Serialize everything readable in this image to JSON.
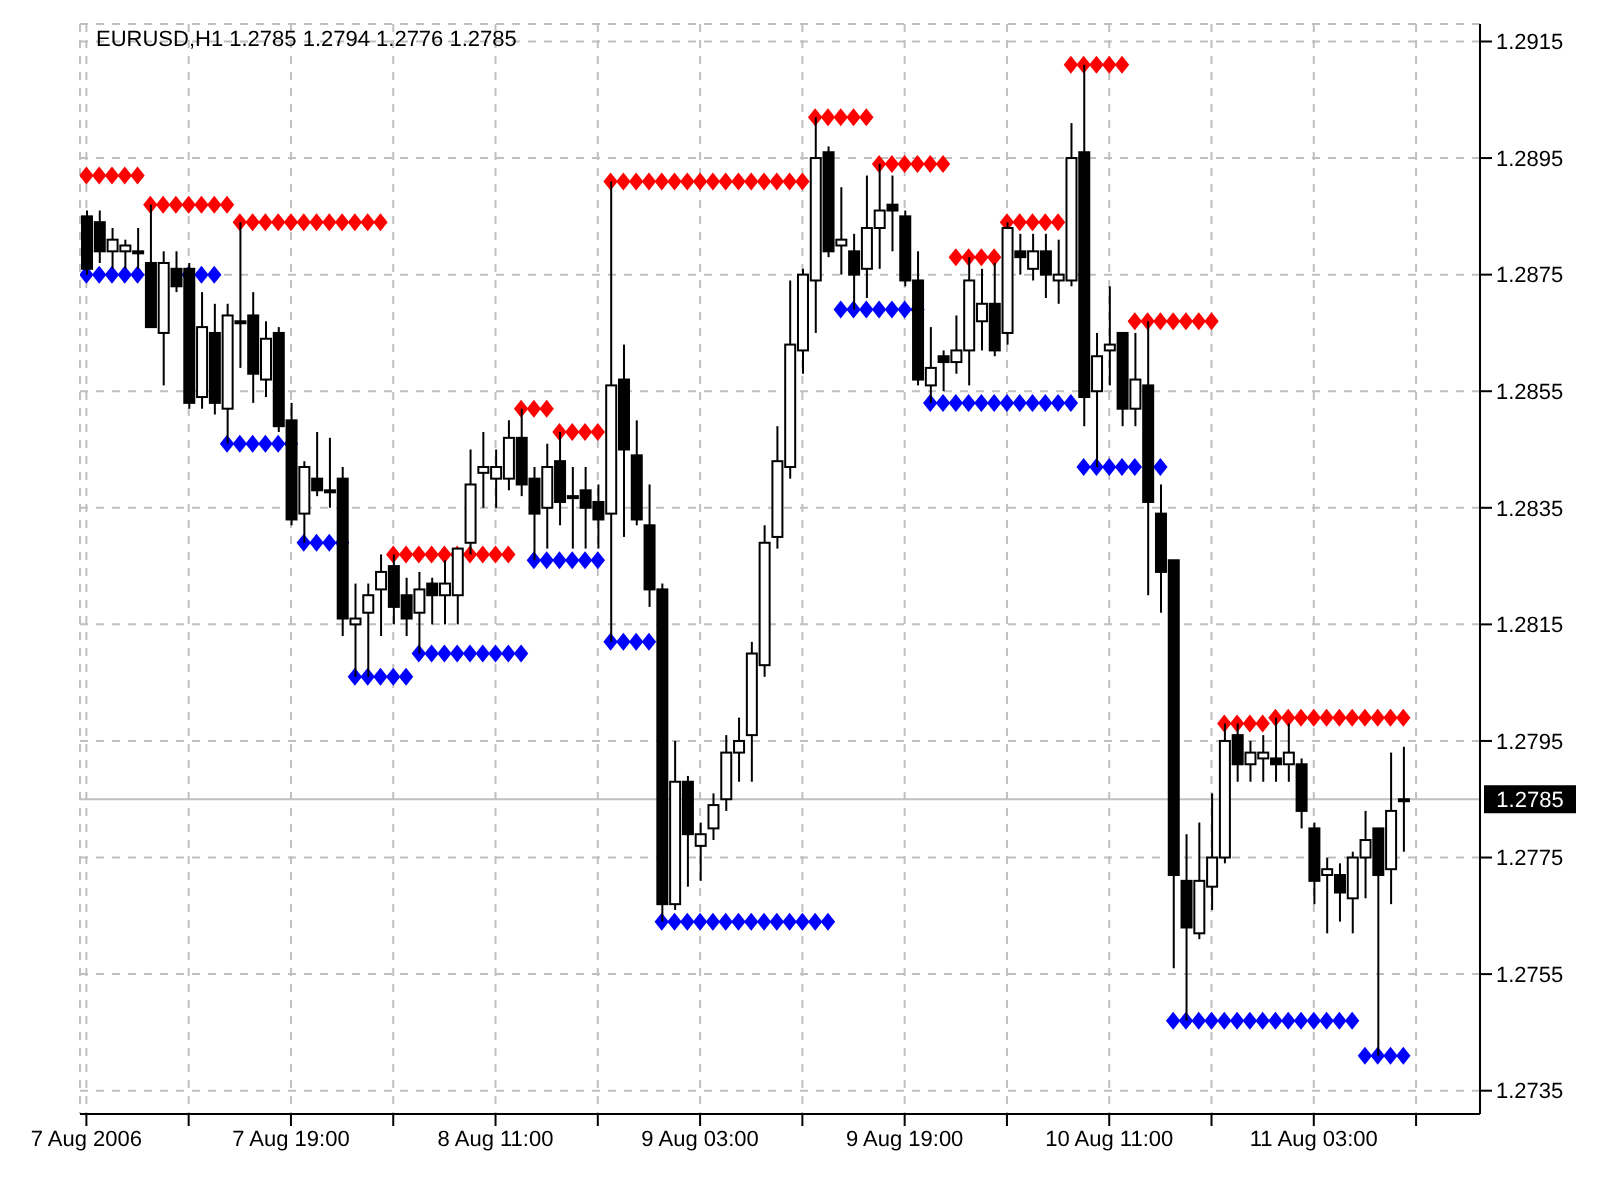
{
  "chart_data": {
    "type": "candlestick",
    "title": "EURUSD,H1 1.2785 1.2794 1.2776 1.2785",
    "x": [
      "2006-08-07T03:00",
      "2006-08-07T04:00",
      "2006-08-07T05:00",
      "2006-08-07T06:00",
      "2006-08-07T07:00",
      "2006-08-07T08:00",
      "2006-08-07T09:00",
      "2006-08-07T10:00",
      "2006-08-07T11:00",
      "2006-08-07T12:00",
      "2006-08-07T13:00",
      "2006-08-07T14:00",
      "2006-08-07T15:00",
      "2006-08-07T16:00",
      "2006-08-07T17:00",
      "2006-08-07T18:00",
      "2006-08-07T19:00",
      "2006-08-07T20:00",
      "2006-08-07T21:00",
      "2006-08-07T22:00",
      "2006-08-07T23:00",
      "2006-08-08T00:00",
      "2006-08-08T01:00",
      "2006-08-08T02:00",
      "2006-08-08T03:00",
      "2006-08-08T04:00",
      "2006-08-08T05:00",
      "2006-08-08T06:00",
      "2006-08-08T07:00",
      "2006-08-08T08:00",
      "2006-08-08T09:00",
      "2006-08-08T10:00",
      "2006-08-08T11:00",
      "2006-08-08T12:00",
      "2006-08-08T13:00",
      "2006-08-08T14:00",
      "2006-08-08T15:00",
      "2006-08-08T16:00",
      "2006-08-08T17:00",
      "2006-08-08T18:00",
      "2006-08-08T19:00",
      "2006-08-08T20:00",
      "2006-08-08T21:00",
      "2006-08-08T22:00",
      "2006-08-08T23:00",
      "2006-08-09T00:00",
      "2006-08-09T01:00",
      "2006-08-09T02:00",
      "2006-08-09T03:00",
      "2006-08-09T04:00",
      "2006-08-09T05:00",
      "2006-08-09T06:00",
      "2006-08-09T07:00",
      "2006-08-09T08:00",
      "2006-08-09T09:00",
      "2006-08-09T10:00",
      "2006-08-09T11:00",
      "2006-08-09T12:00",
      "2006-08-09T13:00",
      "2006-08-09T14:00",
      "2006-08-09T15:00",
      "2006-08-09T16:00",
      "2006-08-09T17:00",
      "2006-08-09T18:00",
      "2006-08-09T19:00",
      "2006-08-09T20:00",
      "2006-08-09T21:00",
      "2006-08-09T22:00",
      "2006-08-09T23:00",
      "2006-08-10T00:00",
      "2006-08-10T01:00",
      "2006-08-10T02:00",
      "2006-08-10T03:00",
      "2006-08-10T04:00",
      "2006-08-10T05:00",
      "2006-08-10T06:00",
      "2006-08-10T07:00",
      "2006-08-10T08:00",
      "2006-08-10T09:00",
      "2006-08-10T10:00",
      "2006-08-10T11:00",
      "2006-08-10T12:00",
      "2006-08-10T13:00",
      "2006-08-10T14:00",
      "2006-08-10T15:00",
      "2006-08-10T16:00",
      "2006-08-10T17:00",
      "2006-08-10T18:00",
      "2006-08-10T19:00",
      "2006-08-10T20:00",
      "2006-08-10T21:00",
      "2006-08-10T22:00",
      "2006-08-10T23:00",
      "2006-08-11T00:00",
      "2006-08-11T01:00",
      "2006-08-11T02:00",
      "2006-08-11T03:00",
      "2006-08-11T04:00",
      "2006-08-11T05:00",
      "2006-08-11T06:00",
      "2006-08-11T07:00",
      "2006-08-11T08:00",
      "2006-08-11T09:00",
      "2006-08-11T10:00"
    ],
    "ohlc": [
      [
        1.2885,
        1.2886,
        1.2875,
        1.2876
      ],
      [
        1.2884,
        1.2886,
        1.2877,
        1.2879
      ],
      [
        1.2879,
        1.2883,
        1.2876,
        1.2881
      ],
      [
        1.2879,
        1.2881,
        1.2876,
        1.288
      ],
      [
        1.2879,
        1.2883,
        1.2876,
        1.2879
      ],
      [
        1.2877,
        1.2887,
        1.2866,
        1.2866
      ],
      [
        1.2865,
        1.2879,
        1.2856,
        1.2877
      ],
      [
        1.2876,
        1.2879,
        1.2872,
        1.2873
      ],
      [
        1.2876,
        1.2877,
        1.2852,
        1.2853
      ],
      [
        1.2854,
        1.2872,
        1.2852,
        1.2866
      ],
      [
        1.2865,
        1.287,
        1.2851,
        1.2853
      ],
      [
        1.2852,
        1.287,
        1.2846,
        1.2868
      ],
      [
        1.2867,
        1.2884,
        1.2859,
        1.2867
      ],
      [
        1.2868,
        1.2872,
        1.2853,
        1.2858
      ],
      [
        1.2857,
        1.2867,
        1.2854,
        1.2864
      ],
      [
        1.2865,
        1.2866,
        1.2848,
        1.2849
      ],
      [
        1.285,
        1.2853,
        1.2832,
        1.2833
      ],
      [
        1.2834,
        1.2843,
        1.2829,
        1.2842
      ],
      [
        1.284,
        1.2848,
        1.2837,
        1.2838
      ],
      [
        1.2838,
        1.2847,
        1.2835,
        1.2838
      ],
      [
        1.284,
        1.2842,
        1.2813,
        1.2816
      ],
      [
        1.2815,
        1.2822,
        1.2806,
        1.2816
      ],
      [
        1.2817,
        1.2822,
        1.2806,
        1.282
      ],
      [
        1.2821,
        1.2827,
        1.2813,
        1.2824
      ],
      [
        1.2825,
        1.2827,
        1.2815,
        1.2818
      ],
      [
        1.282,
        1.2823,
        1.2813,
        1.2816
      ],
      [
        1.2817,
        1.2824,
        1.281,
        1.2821
      ],
      [
        1.2822,
        1.2823,
        1.2815,
        1.282
      ],
      [
        1.282,
        1.2826,
        1.2815,
        1.2822
      ],
      [
        1.282,
        1.2828,
        1.2815,
        1.2828
      ],
      [
        1.2829,
        1.2845,
        1.2827,
        1.2839
      ],
      [
        1.2841,
        1.2848,
        1.2835,
        1.2842
      ],
      [
        1.284,
        1.2845,
        1.2835,
        1.2842
      ],
      [
        1.284,
        1.285,
        1.2838,
        1.2847
      ],
      [
        1.2847,
        1.2852,
        1.2837,
        1.2839
      ],
      [
        1.284,
        1.2842,
        1.2826,
        1.2834
      ],
      [
        1.2835,
        1.2846,
        1.2828,
        1.2842
      ],
      [
        1.2843,
        1.2848,
        1.2832,
        1.2836
      ],
      [
        1.2837,
        1.2842,
        1.2828,
        1.2837
      ],
      [
        1.2838,
        1.2842,
        1.2828,
        1.2835
      ],
      [
        1.2836,
        1.2839,
        1.2828,
        1.2833
      ],
      [
        1.2834,
        1.2891,
        1.2812,
        1.2856
      ],
      [
        1.2857,
        1.2863,
        1.283,
        1.2845
      ],
      [
        1.2844,
        1.285,
        1.2832,
        1.2833
      ],
      [
        1.2832,
        1.2839,
        1.2818,
        1.2821
      ],
      [
        1.2821,
        1.2822,
        1.2764,
        1.2767
      ],
      [
        1.2767,
        1.2795,
        1.2766,
        1.2788
      ],
      [
        1.2788,
        1.2789,
        1.277,
        1.2779
      ],
      [
        1.2777,
        1.2781,
        1.2771,
        1.2779
      ],
      [
        1.278,
        1.2786,
        1.2778,
        1.2784
      ],
      [
        1.2785,
        1.2796,
        1.2783,
        1.2793
      ],
      [
        1.2793,
        1.2799,
        1.2788,
        1.2795
      ],
      [
        1.2796,
        1.2812,
        1.2788,
        1.281
      ],
      [
        1.2808,
        1.2832,
        1.2806,
        1.2829
      ],
      [
        1.283,
        1.2849,
        1.2828,
        1.2843
      ],
      [
        1.2842,
        1.2874,
        1.284,
        1.2863
      ],
      [
        1.2862,
        1.2876,
        1.2858,
        1.2875
      ],
      [
        1.2874,
        1.2902,
        1.2865,
        1.2895
      ],
      [
        1.2896,
        1.2897,
        1.2878,
        1.2879
      ],
      [
        1.288,
        1.289,
        1.2875,
        1.2881
      ],
      [
        1.2879,
        1.2882,
        1.2869,
        1.2875
      ],
      [
        1.2876,
        1.2892,
        1.2871,
        1.2883
      ],
      [
        1.2883,
        1.2894,
        1.2876,
        1.2886
      ],
      [
        1.2887,
        1.2892,
        1.2879,
        1.2886
      ],
      [
        1.2885,
        1.2886,
        1.2873,
        1.2874
      ],
      [
        1.2874,
        1.2879,
        1.2856,
        1.2857
      ],
      [
        1.2856,
        1.2866,
        1.2853,
        1.2859
      ],
      [
        1.2861,
        1.2862,
        1.2855,
        1.286
      ],
      [
        1.286,
        1.2868,
        1.2858,
        1.2862
      ],
      [
        1.2862,
        1.2878,
        1.2856,
        1.2874
      ],
      [
        1.2867,
        1.2876,
        1.2862,
        1.287
      ],
      [
        1.287,
        1.2877,
        1.2861,
        1.2862
      ],
      [
        1.2865,
        1.2884,
        1.2863,
        1.2883
      ],
      [
        1.2879,
        1.2882,
        1.2875,
        1.2878
      ],
      [
        1.2876,
        1.2882,
        1.2874,
        1.2879
      ],
      [
        1.2879,
        1.2882,
        1.2871,
        1.2875
      ],
      [
        1.2874,
        1.2881,
        1.287,
        1.2875
      ],
      [
        1.2874,
        1.2901,
        1.2873,
        1.2895
      ],
      [
        1.2896,
        1.2911,
        1.2849,
        1.2854
      ],
      [
        1.2855,
        1.2865,
        1.2842,
        1.2861
      ],
      [
        1.2862,
        1.2873,
        1.2856,
        1.2863
      ],
      [
        1.2865,
        1.2865,
        1.2849,
        1.2852
      ],
      [
        1.2852,
        1.2865,
        1.2849,
        1.2857
      ],
      [
        1.2856,
        1.2867,
        1.282,
        1.2836
      ],
      [
        1.2834,
        1.2839,
        1.2817,
        1.2824
      ],
      [
        1.2826,
        1.2826,
        1.2756,
        1.2772
      ],
      [
        1.2771,
        1.2779,
        1.2747,
        1.2763
      ],
      [
        1.2762,
        1.2781,
        1.2761,
        1.2771
      ],
      [
        1.277,
        1.2786,
        1.2766,
        1.2775
      ],
      [
        1.2775,
        1.2798,
        1.2774,
        1.2795
      ],
      [
        1.2796,
        1.2798,
        1.2788,
        1.2791
      ],
      [
        1.2791,
        1.2795,
        1.2788,
        1.2793
      ],
      [
        1.2792,
        1.2796,
        1.2788,
        1.2793
      ],
      [
        1.2792,
        1.2799,
        1.2788,
        1.2791
      ],
      [
        1.2791,
        1.2798,
        1.2788,
        1.2793
      ],
      [
        1.2791,
        1.2792,
        1.278,
        1.2783
      ],
      [
        1.278,
        1.2781,
        1.2767,
        1.2771
      ],
      [
        1.2772,
        1.2775,
        1.2762,
        1.2773
      ],
      [
        1.2772,
        1.2774,
        1.2764,
        1.2769
      ],
      [
        1.2768,
        1.2776,
        1.2762,
        1.2775
      ],
      [
        1.2775,
        1.2783,
        1.2768,
        1.2778
      ],
      [
        1.278,
        1.278,
        1.2741,
        1.2772
      ],
      [
        1.2773,
        1.2793,
        1.2767,
        1.2783
      ],
      [
        1.2785,
        1.2794,
        1.2776,
        1.2785
      ]
    ],
    "series": [
      {
        "type": "scatter",
        "color": "#ff0000",
        "values": [
          1.2892,
          1.2892,
          1.2892,
          1.2892,
          1.2892,
          1.2887,
          1.2887,
          1.2887,
          1.2887,
          1.2887,
          1.2887,
          1.2887,
          1.2884,
          1.2884,
          1.2884,
          1.2884,
          1.2884,
          1.2884,
          1.2884,
          1.2884,
          1.2884,
          1.2884,
          1.2884,
          1.2884,
          1.2827,
          1.2827,
          1.2827,
          1.2827,
          1.2827,
          1.2827,
          1.2827,
          1.2827,
          1.2827,
          1.2827,
          1.2852,
          1.2852,
          1.2852,
          1.2848,
          1.2848,
          1.2848,
          1.2848,
          1.2891,
          1.2891,
          1.2891,
          1.2891,
          1.2891,
          1.2891,
          1.2891,
          1.2891,
          1.2891,
          1.2891,
          1.2891,
          1.2891,
          1.2891,
          1.2891,
          1.2891,
          1.2891,
          1.2902,
          1.2902,
          1.2902,
          1.2902,
          1.2902,
          1.2894,
          1.2894,
          1.2894,
          1.2894,
          1.2894,
          1.2894,
          1.2878,
          1.2878,
          1.2878,
          1.2878,
          1.2884,
          1.2884,
          1.2884,
          1.2884,
          1.2884,
          1.2911,
          1.2911,
          1.2911,
          1.2911,
          1.2911,
          1.2867,
          1.2867,
          1.2867,
          1.2867,
          1.2867,
          1.2867,
          1.2867,
          1.2798,
          1.2798,
          1.2798,
          1.2798,
          1.2799,
          1.2799,
          1.2799,
          1.2799,
          1.2799,
          1.2799,
          1.2799,
          1.2799,
          1.2799,
          1.2799,
          1.2799
        ]
      },
      {
        "type": "scatter",
        "color": "#0000ff",
        "values": [
          1.2875,
          1.2875,
          1.2875,
          1.2875,
          1.2875,
          null,
          null,
          null,
          1.2875,
          1.2875,
          1.2875,
          1.2846,
          1.2846,
          1.2846,
          1.2846,
          1.2846,
          1.2846,
          1.2829,
          1.2829,
          1.2829,
          1.2829,
          1.2806,
          1.2806,
          1.2806,
          1.2806,
          1.2806,
          1.281,
          1.281,
          1.281,
          1.281,
          1.281,
          1.281,
          1.281,
          1.281,
          1.281,
          1.2826,
          1.2826,
          1.2826,
          1.2826,
          1.2826,
          1.2826,
          1.2812,
          1.2812,
          1.2812,
          1.2812,
          1.2764,
          1.2764,
          1.2764,
          1.2764,
          1.2764,
          1.2764,
          1.2764,
          1.2764,
          1.2764,
          1.2764,
          1.2764,
          1.2764,
          1.2764,
          1.2764,
          1.2869,
          1.2869,
          1.2869,
          1.2869,
          1.2869,
          1.2869,
          1.2869,
          1.2853,
          1.2853,
          1.2853,
          1.2853,
          1.2853,
          1.2853,
          1.2853,
          1.2853,
          1.2853,
          1.2853,
          1.2853,
          1.2853,
          1.2842,
          1.2842,
          1.2842,
          1.2842,
          1.2842,
          null,
          1.2842,
          1.2747,
          1.2747,
          1.2747,
          1.2747,
          1.2747,
          1.2747,
          1.2747,
          1.2747,
          1.2747,
          1.2747,
          1.2747,
          1.2747,
          1.2747,
          1.2747,
          1.2747,
          1.2741,
          1.2741,
          1.2741,
          1.2741
        ]
      }
    ],
    "marker": "diamond",
    "xlim": [
      "2006-08-07T02:30",
      "2006-08-11T16:00"
    ],
    "xticks": [
      {
        "value": "2006-08-07T03:00",
        "label": "7 Aug 2006"
      },
      {
        "value": "2006-08-07T11:00",
        "label": null
      },
      {
        "value": "2006-08-07T19:00",
        "label": "7 Aug 19:00"
      },
      {
        "value": "2006-08-08T03:00",
        "label": null
      },
      {
        "value": "2006-08-08T11:00",
        "label": "8 Aug 11:00"
      },
      {
        "value": "2006-08-08T19:00",
        "label": null
      },
      {
        "value": "2006-08-09T03:00",
        "label": "9 Aug 03:00"
      },
      {
        "value": "2006-08-09T11:00",
        "label": null
      },
      {
        "value": "2006-08-09T19:00",
        "label": "9 Aug 19:00"
      },
      {
        "value": "2006-08-10T03:00",
        "label": null
      },
      {
        "value": "2006-08-10T11:00",
        "label": "10 Aug 11:00"
      },
      {
        "value": "2006-08-10T19:00",
        "label": null
      },
      {
        "value": "2006-08-11T03:00",
        "label": "11 Aug 03:00"
      },
      {
        "value": "2006-08-11T11:00",
        "label": null
      }
    ],
    "ylim": [
      1.2731,
      1.2918
    ],
    "yticks": [
      1.2735,
      1.2755,
      1.2775,
      1.2795,
      1.2815,
      1.2835,
      1.2855,
      1.2875,
      1.2895,
      1.2915
    ],
    "grid": true,
    "ref_lines": [
      {
        "axis": "y",
        "value": 1.2785,
        "label": "1.2785",
        "color": "#c0c0c0"
      }
    ]
  }
}
